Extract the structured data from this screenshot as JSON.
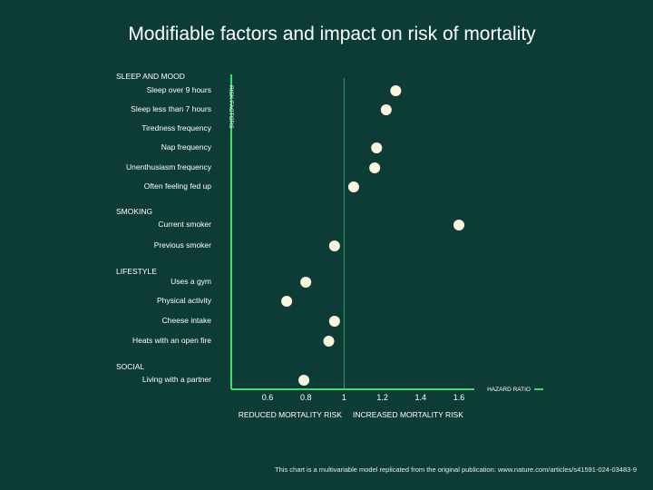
{
  "chart_data": {
    "type": "scatter",
    "title": "Modifiable factors and impact on risk of mortality",
    "xlabel": "HAZARD RATIO",
    "ylabel": "RISK FACTORS",
    "xlim": [
      0.42,
      1.65
    ],
    "x_ticks": [
      0.6,
      0.8,
      1,
      1.2,
      1.4,
      1.6
    ],
    "x_tick_labels": [
      "0.6",
      "0.8",
      "1",
      "1.2",
      "1.4",
      "1.6"
    ],
    "reference_line": 1,
    "region_labels": {
      "left": "REDUCED MORTALITY RISK",
      "right": "INCREASED MORTALITY RISK"
    },
    "groups": [
      {
        "name": "SLEEP AND MOOD",
        "items": [
          {
            "label": "Sleep over 9 hours",
            "value": 1.27
          },
          {
            "label": "Sleep less than 7 hours",
            "value": 1.22
          },
          {
            "label": "Tiredness frequency",
            "value": null
          },
          {
            "label": "Nap frequency",
            "value": 1.17
          },
          {
            "label": "Unenthusiasm frequency",
            "value": 1.16
          },
          {
            "label": "Often feeling fed up",
            "value": 1.05
          }
        ]
      },
      {
        "name": "SMOKING",
        "items": [
          {
            "label": "Current smoker",
            "value": 1.6
          },
          {
            "label": "Previous smoker",
            "value": 0.95
          }
        ]
      },
      {
        "name": "LIFESTYLE",
        "items": [
          {
            "label": "Uses a gym",
            "value": 0.8
          },
          {
            "label": "Physical activity",
            "value": 0.7
          },
          {
            "label": "Cheese intake",
            "value": 0.95
          },
          {
            "label": "Heats with an open fire",
            "value": 0.92
          }
        ]
      },
      {
        "name": "SOCIAL",
        "items": [
          {
            "label": "Living with a partner",
            "value": 0.79
          }
        ]
      }
    ],
    "colors": {
      "background": "#0d3b36",
      "axis": "#3ddc6e",
      "point": "#fbf5dc",
      "text": "#ffffff"
    }
  },
  "footnote": "This chart is a multivariable model replicated from the original publication: www.nature.com/articles/s41591-024-03483-9"
}
